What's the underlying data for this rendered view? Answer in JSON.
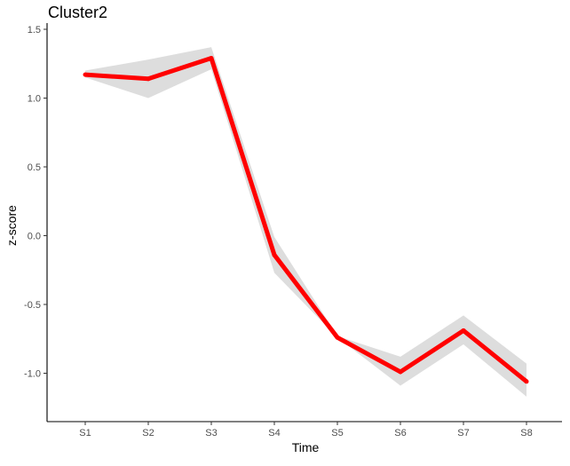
{
  "chart_data": {
    "type": "line",
    "title": "Cluster2",
    "xlabel": "Time",
    "ylabel": "z-score",
    "categories": [
      "S1",
      "S2",
      "S3",
      "S4",
      "S5",
      "S6",
      "S7",
      "S8"
    ],
    "series": [
      {
        "values": [
          1.17,
          1.14,
          1.29,
          -0.14,
          -0.74,
          -0.99,
          -0.69,
          -1.06
        ],
        "ribbon_lower": [
          1.15,
          1.0,
          1.21,
          -0.27,
          -0.74,
          -1.09,
          -0.79,
          -1.17
        ],
        "ribbon_upper": [
          1.2,
          1.28,
          1.37,
          -0.01,
          -0.73,
          -0.88,
          -0.58,
          -0.93
        ]
      }
    ],
    "ylim": [
      -1.3,
      1.5
    ],
    "yticks": [
      -1.0,
      -0.5,
      0.0,
      0.5,
      1.0,
      1.5
    ],
    "ytick_labels": [
      "-1.0",
      "-0.5",
      "0.0",
      "0.5",
      "1.0",
      "1.5"
    ],
    "grid": false,
    "legend": "none",
    "colors": {
      "line": "#ff0000",
      "ribbon": "#dddddd",
      "axis": "#000000",
      "tick_text": "#4d4d4d"
    }
  }
}
